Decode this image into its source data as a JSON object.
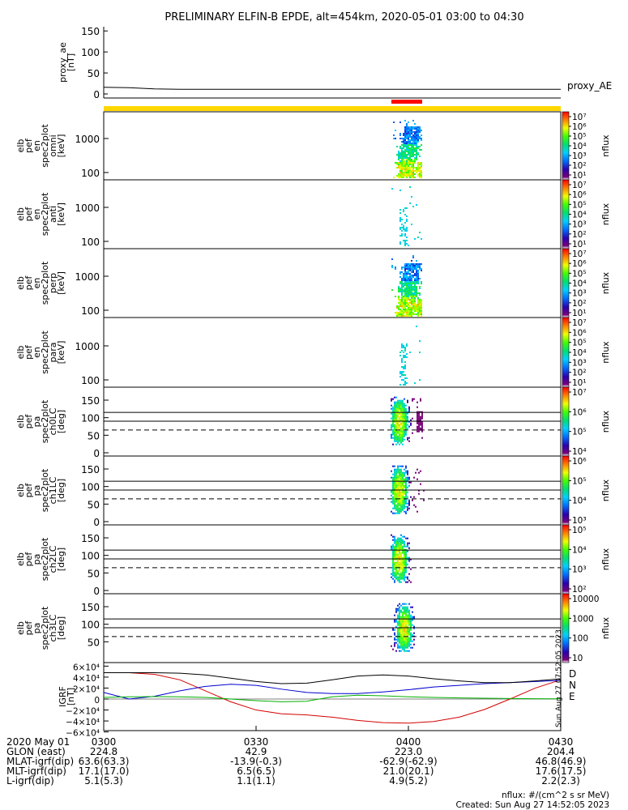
{
  "title": "PRELIMINARY ELFIN-B EPDE, alt=454km, 2020-05-01 03:00 to 04:30",
  "time_ticks": [
    "0300",
    "0330",
    "0400",
    "0430"
  ],
  "footer": {
    "rows": [
      {
        "label": "2020 May 01",
        "values": [
          "0300",
          "0330",
          "0400",
          "0430"
        ]
      },
      {
        "label": "GLON (east)",
        "values": [
          "224.8",
          "42.9",
          "223.0",
          "204.4"
        ]
      },
      {
        "label": "MLAT-igrf(dip)",
        "values": [
          "63.6(63.3)",
          "-13.9(-0.3)",
          "-62.9(-62.9)",
          "46.8(46.9)"
        ]
      },
      {
        "label": "MLT-igrf(dip)",
        "values": [
          "17.1(17.0)",
          "6.5(6.5)",
          "21.0(20.1)",
          "17.6(17.5)"
        ]
      },
      {
        "label": "L-igrf(dip)",
        "values": [
          "5.1(5.3)",
          "1.1(1.1)",
          "4.9(5.2)",
          "2.2(2.3)"
        ]
      }
    ],
    "units_note": "nflux: #/(cm^2 s sr MeV)",
    "created": "Created: Sun Aug 27 14:52:05 2023",
    "side_stamp": "Sun Aug 27 07:52:05 2023"
  },
  "colors": {
    "yellow_bar": "#ffd700",
    "red_bar": "#ff0000",
    "D": "#d40000",
    "N": "#0000d0",
    "E": "#00b000"
  },
  "chart_data": [
    {
      "type": "line",
      "panel": "proxy_ae",
      "ylabel_lines": [
        "proxy_ae",
        "[nT]"
      ],
      "yticks": [
        "0",
        "50",
        "100",
        "150"
      ],
      "ylim": [
        0,
        160
      ],
      "legend": "proxy_AE",
      "series": [
        {
          "x": [
            0,
            5,
            10,
            15,
            30,
            60,
            90
          ],
          "values": [
            16,
            15,
            12,
            11,
            11,
            11,
            11
          ]
        }
      ]
    },
    {
      "type": "heatmap",
      "panel": "en_omni",
      "ylabel_lines": [
        "elb",
        "pef",
        "en",
        "spec2plot",
        "omni",
        "[keV]"
      ],
      "yticks": [
        "100",
        "1000"
      ],
      "yscale": "log",
      "colorbar": {
        "label": "nflux",
        "ticks": [
          "10⁷",
          "10⁶",
          "10⁵",
          "10⁴",
          "10³",
          "10²",
          "10¹"
        ]
      }
    },
    {
      "type": "heatmap",
      "panel": "en_anti",
      "ylabel_lines": [
        "elb",
        "pef",
        "en",
        "spec2plot",
        "anti",
        "[keV]"
      ],
      "yticks": [
        "100",
        "1000"
      ],
      "yscale": "log",
      "colorbar": {
        "label": "nflux",
        "ticks": [
          "10⁷",
          "10⁶",
          "10⁵",
          "10⁴",
          "10³",
          "10²",
          "10¹"
        ]
      }
    },
    {
      "type": "heatmap",
      "panel": "en_perp",
      "ylabel_lines": [
        "elb",
        "pef",
        "en",
        "spec2plot",
        "perp",
        "[keV]"
      ],
      "yticks": [
        "100",
        "1000"
      ],
      "yscale": "log",
      "colorbar": {
        "label": "nflux",
        "ticks": [
          "10⁷",
          "10⁶",
          "10⁵",
          "10⁴",
          "10³",
          "10²",
          "10¹"
        ]
      }
    },
    {
      "type": "heatmap",
      "panel": "en_para",
      "ylabel_lines": [
        "elb",
        "pef",
        "en",
        "spec2plot",
        "para",
        "[keV]"
      ],
      "yticks": [
        "100",
        "1000"
      ],
      "yscale": "log",
      "colorbar": {
        "label": "nflux",
        "ticks": [
          "10⁷",
          "10⁶",
          "10⁵",
          "10⁴",
          "10³",
          "10²",
          "10¹"
        ]
      }
    },
    {
      "type": "heatmap",
      "panel": "pa_ch0LC",
      "ylabel_lines": [
        "elb",
        "pef",
        "pa",
        "spec2plot",
        "ch0LC",
        "[deg]"
      ],
      "yticks": [
        "0",
        "50",
        "100",
        "150"
      ],
      "ylim": [
        0,
        180
      ],
      "colorbar": {
        "label": "nflux",
        "ticks": [
          "10⁷",
          "10⁶",
          "10⁵",
          "10⁴"
        ]
      }
    },
    {
      "type": "heatmap",
      "panel": "pa_ch1LC",
      "ylabel_lines": [
        "elb",
        "pef",
        "pa",
        "spec2plot",
        "ch1LC",
        "[deg]"
      ],
      "yticks": [
        "0",
        "50",
        "100",
        "150"
      ],
      "ylim": [
        0,
        180
      ],
      "colorbar": {
        "label": "nflux",
        "ticks": [
          "10⁶",
          "10⁵",
          "10⁴",
          "10³"
        ]
      }
    },
    {
      "type": "heatmap",
      "panel": "pa_ch2LC",
      "ylabel_lines": [
        "elb",
        "pef",
        "pa",
        "spec2plot",
        "ch2LC",
        "[deg]"
      ],
      "yticks": [
        "0",
        "50",
        "100",
        "150"
      ],
      "ylim": [
        0,
        180
      ],
      "colorbar": {
        "label": "nflux",
        "ticks": [
          "10⁵",
          "10⁴",
          "10³",
          "10²"
        ]
      }
    },
    {
      "type": "heatmap",
      "panel": "pa_ch3LC",
      "ylabel_lines": [
        "elb",
        "pef",
        "pa",
        "spec2plot",
        "ch3LC",
        "[deg]"
      ],
      "yticks": [
        "50",
        "100",
        "150"
      ],
      "ylim": [
        0,
        180
      ],
      "colorbar": {
        "label": "nflux",
        "ticks": [
          "10000",
          "1000",
          "100",
          "10"
        ]
      }
    },
    {
      "type": "line",
      "panel": "igrf",
      "ylabel_lines": [
        "IGRF",
        "[nT]"
      ],
      "yticks": [
        "6×10⁴",
        "4×10⁴",
        "2×10⁴",
        "0",
        "−2×10⁴",
        "−4×10⁴",
        "−6×10⁴"
      ],
      "ylim": [
        -65000,
        65000
      ],
      "series": [
        {
          "name": "D",
          "x": [
            0,
            5,
            10,
            15,
            20,
            25,
            30,
            35,
            40,
            45,
            50,
            55,
            60,
            65,
            70,
            75,
            80,
            85,
            90
          ],
          "values": [
            48000,
            48000,
            45000,
            35000,
            15000,
            -5000,
            -20000,
            -27000,
            -29000,
            -33000,
            -39000,
            -43000,
            -44000,
            -41000,
            -33000,
            -19000,
            0,
            20000,
            35000
          ]
        },
        {
          "name": "N",
          "x": [
            0,
            5,
            10,
            15,
            20,
            25,
            30,
            35,
            40,
            45,
            50,
            55,
            60,
            65,
            70,
            75,
            80,
            85,
            90
          ],
          "values": [
            12000,
            0,
            5000,
            15000,
            23000,
            27000,
            25000,
            18000,
            12000,
            10000,
            10000,
            13000,
            17000,
            22000,
            25000,
            28000,
            30000,
            32000,
            34000
          ]
        },
        {
          "name": "E",
          "x": [
            0,
            5,
            10,
            15,
            20,
            25,
            30,
            35,
            40,
            45,
            50,
            55,
            60,
            65,
            70,
            75,
            80,
            85,
            90
          ],
          "values": [
            3000,
            4000,
            4500,
            4000,
            3000,
            0,
            -3000,
            -5000,
            -4000,
            4000,
            7000,
            6000,
            4000,
            3000,
            2000,
            1500,
            1000,
            600,
            300
          ]
        },
        {
          "name": "",
          "x": [
            0,
            5,
            10,
            15,
            20,
            25,
            30,
            35,
            40,
            45,
            50,
            55,
            60,
            65,
            70,
            75,
            80,
            85,
            90
          ],
          "values": [
            48000,
            48000,
            48000,
            47000,
            44000,
            38000,
            32000,
            28000,
            29000,
            35000,
            42000,
            44000,
            42000,
            37000,
            33000,
            30000,
            30000,
            33000,
            37000
          ]
        }
      ]
    }
  ]
}
